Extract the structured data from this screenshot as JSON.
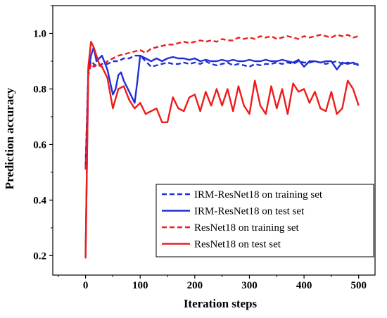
{
  "chart_data": {
    "type": "line",
    "title": "",
    "xlabel": "Iteration steps",
    "ylabel": "Prediction accuracy",
    "xlim": [
      -60,
      530
    ],
    "ylim": [
      0.13,
      1.1
    ],
    "xticks": [
      0,
      100,
      200,
      300,
      400,
      500
    ],
    "yticks": [
      0.2,
      0.4,
      0.6,
      0.8,
      1.0
    ],
    "xtick_labels": [
      "0",
      "100",
      "200",
      "300",
      "400",
      "500"
    ],
    "ytick_labels": [
      "0.2",
      "0.4",
      "0.6",
      "0.8",
      "1.0"
    ],
    "grid": false,
    "legend_position": "bottom-right",
    "series": [
      {
        "name": "IRM-ResNet18 on training set",
        "color": "#1f2fd6",
        "style": "dashed",
        "x": [
          0,
          5,
          10,
          15,
          20,
          30,
          40,
          50,
          60,
          70,
          80,
          90,
          100,
          110,
          120,
          130,
          140,
          150,
          160,
          170,
          180,
          190,
          200,
          210,
          220,
          230,
          240,
          250,
          260,
          270,
          280,
          290,
          300,
          310,
          320,
          330,
          340,
          350,
          360,
          370,
          380,
          390,
          400,
          410,
          420,
          430,
          440,
          450,
          460,
          470,
          480,
          490,
          500
        ],
        "y": [
          0.52,
          0.87,
          0.9,
          0.89,
          0.88,
          0.89,
          0.89,
          0.9,
          0.9,
          0.91,
          0.91,
          0.92,
          0.92,
          0.9,
          0.88,
          0.885,
          0.89,
          0.895,
          0.89,
          0.89,
          0.895,
          0.89,
          0.895,
          0.89,
          0.9,
          0.89,
          0.885,
          0.89,
          0.895,
          0.885,
          0.89,
          0.885,
          0.88,
          0.89,
          0.885,
          0.89,
          0.89,
          0.895,
          0.89,
          0.895,
          0.89,
          0.9,
          0.895,
          0.895,
          0.9,
          0.895,
          0.89,
          0.895,
          0.9,
          0.89,
          0.895,
          0.89,
          0.89
        ]
      },
      {
        "name": "IRM-ResNet18 on test set",
        "color": "#1f2fd6",
        "style": "solid",
        "x": [
          0,
          5,
          10,
          15,
          20,
          25,
          30,
          40,
          50,
          55,
          60,
          65,
          70,
          80,
          90,
          95,
          100,
          110,
          120,
          130,
          140,
          150,
          160,
          170,
          180,
          190,
          200,
          210,
          220,
          230,
          240,
          250,
          260,
          270,
          280,
          290,
          300,
          310,
          320,
          330,
          340,
          350,
          360,
          370,
          380,
          390,
          400,
          410,
          420,
          430,
          440,
          450,
          460,
          470,
          480,
          490,
          500
        ],
        "y": [
          0.2,
          0.86,
          0.92,
          0.95,
          0.9,
          0.91,
          0.92,
          0.87,
          0.78,
          0.8,
          0.85,
          0.86,
          0.83,
          0.79,
          0.75,
          0.83,
          0.92,
          0.91,
          0.9,
          0.91,
          0.9,
          0.91,
          0.915,
          0.91,
          0.91,
          0.905,
          0.91,
          0.9,
          0.905,
          0.9,
          0.9,
          0.905,
          0.9,
          0.905,
          0.9,
          0.9,
          0.905,
          0.9,
          0.9,
          0.905,
          0.9,
          0.9,
          0.905,
          0.9,
          0.895,
          0.905,
          0.88,
          0.9,
          0.9,
          0.895,
          0.9,
          0.9,
          0.87,
          0.895,
          0.89,
          0.895,
          0.885
        ]
      },
      {
        "name": "ResNet18 on training set",
        "color": "#ee1c1c",
        "style": "dashed",
        "x": [
          0,
          5,
          10,
          15,
          20,
          30,
          40,
          50,
          60,
          70,
          80,
          90,
          100,
          110,
          120,
          130,
          140,
          150,
          160,
          170,
          180,
          190,
          200,
          210,
          220,
          230,
          240,
          250,
          260,
          270,
          280,
          290,
          300,
          310,
          320,
          330,
          340,
          350,
          360,
          370,
          380,
          390,
          400,
          410,
          420,
          430,
          440,
          450,
          460,
          470,
          480,
          490,
          500
        ],
        "y": [
          0.51,
          0.85,
          0.89,
          0.88,
          0.89,
          0.88,
          0.9,
          0.91,
          0.92,
          0.925,
          0.93,
          0.935,
          0.94,
          0.93,
          0.945,
          0.95,
          0.955,
          0.96,
          0.96,
          0.965,
          0.97,
          0.965,
          0.97,
          0.975,
          0.97,
          0.975,
          0.97,
          0.98,
          0.975,
          0.975,
          0.985,
          0.98,
          0.985,
          0.98,
          0.99,
          0.985,
          0.99,
          0.98,
          0.985,
          0.99,
          0.985,
          0.98,
          0.99,
          0.985,
          0.99,
          0.995,
          0.99,
          0.985,
          0.995,
          0.99,
          0.995,
          0.985,
          0.99
        ]
      },
      {
        "name": "ResNet18 on test set",
        "color": "#ee1c1c",
        "style": "solid",
        "x": [
          0,
          5,
          10,
          15,
          20,
          25,
          30,
          40,
          50,
          60,
          70,
          80,
          90,
          100,
          110,
          120,
          130,
          140,
          150,
          160,
          170,
          180,
          190,
          200,
          210,
          220,
          230,
          240,
          250,
          260,
          270,
          280,
          290,
          300,
          310,
          320,
          330,
          340,
          350,
          360,
          370,
          380,
          390,
          400,
          410,
          420,
          430,
          440,
          450,
          460,
          470,
          480,
          490,
          500
        ],
        "y": [
          0.19,
          0.88,
          0.97,
          0.95,
          0.92,
          0.89,
          0.88,
          0.84,
          0.73,
          0.8,
          0.81,
          0.76,
          0.73,
          0.75,
          0.71,
          0.72,
          0.73,
          0.68,
          0.68,
          0.77,
          0.73,
          0.72,
          0.77,
          0.78,
          0.72,
          0.79,
          0.74,
          0.8,
          0.74,
          0.8,
          0.72,
          0.81,
          0.74,
          0.71,
          0.83,
          0.74,
          0.71,
          0.81,
          0.73,
          0.8,
          0.71,
          0.82,
          0.79,
          0.8,
          0.75,
          0.79,
          0.73,
          0.72,
          0.79,
          0.71,
          0.73,
          0.83,
          0.8,
          0.74
        ]
      }
    ]
  }
}
